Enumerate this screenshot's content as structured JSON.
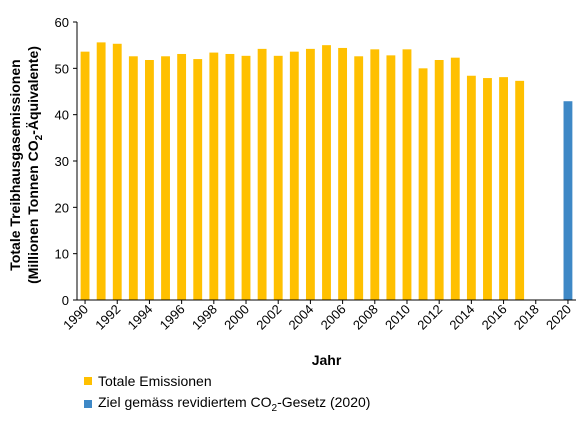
{
  "chart_data": {
    "type": "bar",
    "xlabel": "Jahr",
    "ylabel_line1": "Totale Treibhausgasemissionen",
    "ylabel_line2_pre": "(Millionen Tonnen CO",
    "ylabel_line2_sub": "2",
    "ylabel_line2_post": "-Äquivalente)",
    "ylim": [
      0,
      60
    ],
    "yticks": [
      0,
      10,
      20,
      30,
      40,
      50,
      60
    ],
    "xlim": [
      1990,
      2020
    ],
    "xticks": [
      1990,
      1992,
      1994,
      1996,
      1998,
      2000,
      2002,
      2004,
      2006,
      2008,
      2010,
      2012,
      2014,
      2016,
      2018,
      2020
    ],
    "grid": false,
    "legend_position": "bottom-left",
    "series": [
      {
        "name": "Totale Emissionen",
        "color": "#FFC000",
        "x": [
          1990,
          1991,
          1992,
          1993,
          1994,
          1995,
          1996,
          1997,
          1998,
          1999,
          2000,
          2001,
          2002,
          2003,
          2004,
          2005,
          2006,
          2007,
          2008,
          2009,
          2010,
          2011,
          2012,
          2013,
          2014,
          2015,
          2016,
          2017
        ],
        "values": [
          53.6,
          55.6,
          55.3,
          52.6,
          51.8,
          52.6,
          53.1,
          52.0,
          53.4,
          53.1,
          52.7,
          54.2,
          52.7,
          53.6,
          54.2,
          55.0,
          54.4,
          52.6,
          54.1,
          52.8,
          54.1,
          50.0,
          51.8,
          52.3,
          48.4,
          47.9,
          48.1,
          47.3
        ]
      },
      {
        "name_pre": "Ziel gemäss revidiertem CO",
        "name_sub": "2",
        "name_post": "-Gesetz (2020)",
        "color": "#3E88C6",
        "x": [
          2020
        ],
        "values": [
          42.9
        ]
      }
    ]
  }
}
